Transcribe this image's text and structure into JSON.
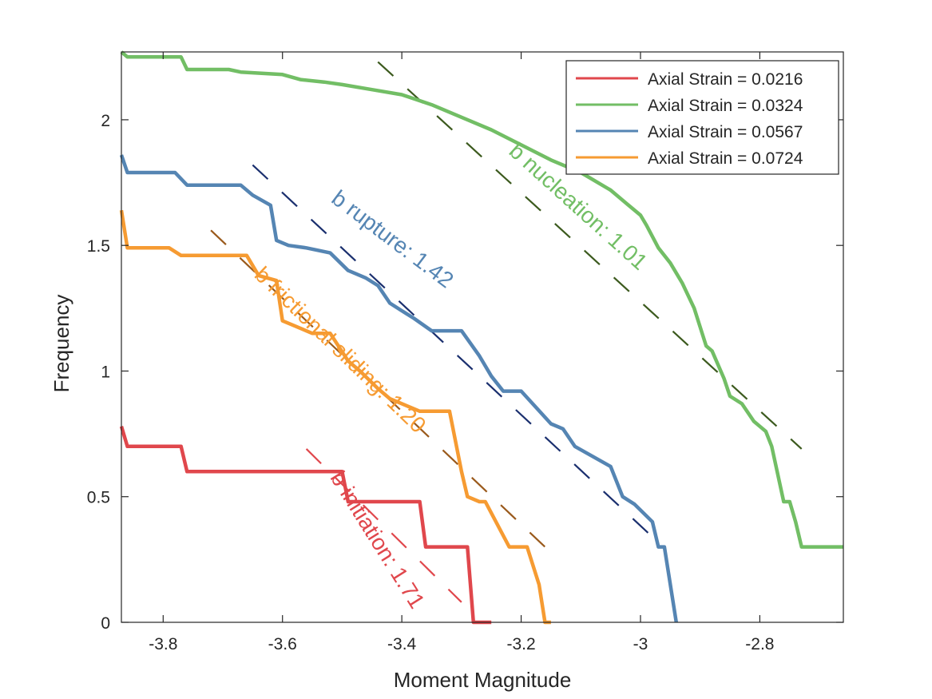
{
  "chart_data": {
    "type": "line",
    "title": "",
    "xlabel": "Moment Magnitude",
    "ylabel": "Frequency",
    "xlim": [
      -3.87,
      -2.66
    ],
    "ylim": [
      0,
      2.27
    ],
    "xticks": [
      -3.8,
      -3.6,
      -3.4,
      -3.2,
      -3.0,
      -2.8
    ],
    "xtick_labels": [
      "-3.8",
      "-3.6",
      "-3.4",
      "-3.2",
      "-3",
      "-2.8"
    ],
    "yticks": [
      0,
      0.5,
      1,
      1.5,
      2
    ],
    "ytick_labels": [
      "0",
      "0.5",
      "1",
      "1.5",
      "2"
    ],
    "grid": false,
    "legend_position": "top-right",
    "series": [
      {
        "name": "Axial Strain = 0.0216",
        "color": "#e0474c",
        "x": [
          -3.87,
          -3.86,
          -3.77,
          -3.76,
          -3.5,
          -3.49,
          -3.37,
          -3.36,
          -3.29,
          -3.28,
          -3.27,
          -3.25
        ],
        "y": [
          0.78,
          0.7,
          0.7,
          0.6,
          0.6,
          0.48,
          0.48,
          0.3,
          0.3,
          0.0,
          0.0,
          0.0
        ]
      },
      {
        "name": "Axial Strain = 0.0324",
        "color": "#72be65",
        "x": [
          -3.87,
          -3.86,
          -3.77,
          -3.76,
          -3.69,
          -3.67,
          -3.6,
          -3.57,
          -3.53,
          -3.5,
          -3.45,
          -3.4,
          -3.35,
          -3.3,
          -3.25,
          -3.2,
          -3.15,
          -3.1,
          -3.05,
          -3.02,
          -3.0,
          -2.99,
          -2.97,
          -2.95,
          -2.93,
          -2.91,
          -2.89,
          -2.88,
          -2.86,
          -2.85,
          -2.83,
          -2.81,
          -2.8,
          -2.79,
          -2.78,
          -2.76,
          -2.75,
          -2.74,
          -2.73,
          -2.66
        ],
        "y": [
          2.27,
          2.25,
          2.25,
          2.2,
          2.2,
          2.19,
          2.18,
          2.16,
          2.15,
          2.14,
          2.12,
          2.1,
          2.06,
          2.01,
          1.96,
          1.9,
          1.84,
          1.79,
          1.72,
          1.66,
          1.62,
          1.58,
          1.49,
          1.43,
          1.35,
          1.25,
          1.1,
          1.08,
          0.97,
          0.9,
          0.87,
          0.8,
          0.78,
          0.76,
          0.7,
          0.48,
          0.48,
          0.4,
          0.3,
          0.3
        ]
      },
      {
        "name": "Axial Strain = 0.0567",
        "color": "#5585b3",
        "x": [
          -3.87,
          -3.86,
          -3.78,
          -3.76,
          -3.67,
          -3.65,
          -3.62,
          -3.61,
          -3.59,
          -3.56,
          -3.52,
          -3.49,
          -3.46,
          -3.44,
          -3.42,
          -3.4,
          -3.38,
          -3.35,
          -3.3,
          -3.27,
          -3.25,
          -3.23,
          -3.2,
          -3.15,
          -3.13,
          -3.11,
          -3.05,
          -3.03,
          -3.01,
          -2.98,
          -2.97,
          -2.96,
          -2.94
        ],
        "y": [
          1.86,
          1.79,
          1.79,
          1.74,
          1.74,
          1.7,
          1.66,
          1.52,
          1.5,
          1.49,
          1.47,
          1.4,
          1.37,
          1.34,
          1.27,
          1.24,
          1.21,
          1.16,
          1.16,
          1.06,
          0.98,
          0.92,
          0.92,
          0.79,
          0.77,
          0.7,
          0.62,
          0.5,
          0.47,
          0.4,
          0.3,
          0.3,
          0.0
        ]
      },
      {
        "name": "Axial Strain = 0.0724",
        "color": "#f69b32",
        "x": [
          -3.87,
          -3.86,
          -3.79,
          -3.77,
          -3.66,
          -3.64,
          -3.61,
          -3.6,
          -3.58,
          -3.55,
          -3.52,
          -3.49,
          -3.47,
          -3.44,
          -3.42,
          -3.37,
          -3.32,
          -3.3,
          -3.29,
          -3.27,
          -3.26,
          -3.22,
          -3.21,
          -3.19,
          -3.17,
          -3.16,
          -3.15
        ],
        "y": [
          1.64,
          1.49,
          1.49,
          1.46,
          1.46,
          1.38,
          1.36,
          1.2,
          1.18,
          1.15,
          1.15,
          1.04,
          1.0,
          0.93,
          0.89,
          0.84,
          0.84,
          0.6,
          0.5,
          0.48,
          0.48,
          0.3,
          0.3,
          0.3,
          0.15,
          0.0,
          0.0
        ]
      }
    ],
    "fit_lines": [
      {
        "label": "b initiation: 1.71",
        "color": "#e0474c",
        "x": [
          -3.56,
          -3.3
        ],
        "y": [
          0.69,
          0.08
        ]
      },
      {
        "label": "b nucleation: 1.01",
        "color": "#3c5a1e",
        "x": [
          -3.44,
          -2.73
        ],
        "y": [
          2.23,
          0.69
        ]
      },
      {
        "label": "b rupture: 1.42",
        "color": "#1a2f6e",
        "x": [
          -3.65,
          -2.98
        ],
        "y": [
          1.82,
          0.34
        ]
      },
      {
        "label": "b frictional sliding: 1.20",
        "color": "#9a5a1c",
        "x": [
          -3.72,
          -3.16
        ],
        "y": [
          1.56,
          0.3
        ]
      }
    ],
    "annotations": [
      {
        "text": "b initiation: 1.71",
        "color": "#e0474c",
        "x": -3.443,
        "y": 0.325,
        "angle": 58
      },
      {
        "text": "b nucleation: 1.01",
        "color": "#72be65",
        "x": -3.106,
        "y": 1.65,
        "angle": 42
      },
      {
        "text": "b rupture: 1.42",
        "color": "#5585b3",
        "x": -3.417,
        "y": 1.52,
        "angle": 37
      },
      {
        "text": "b frictional sliding: 1.20",
        "color": "#f69b32",
        "x": -3.505,
        "y": 1.08,
        "angle": 44
      }
    ]
  }
}
